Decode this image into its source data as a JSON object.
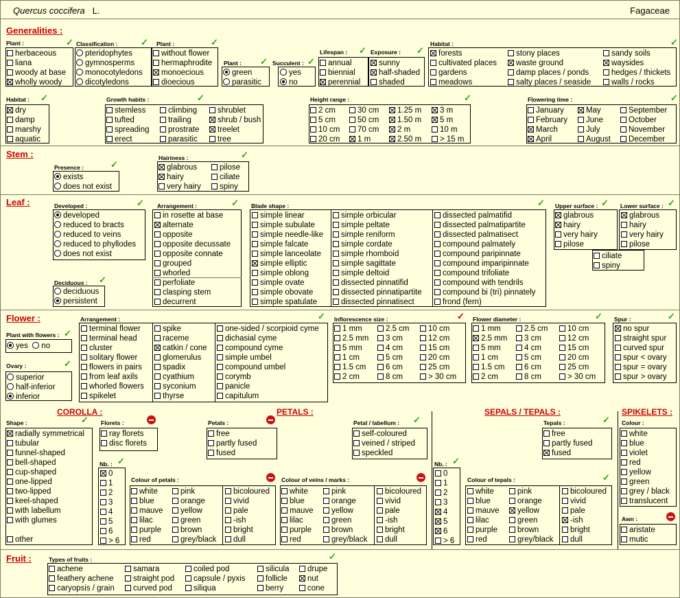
{
  "header": {
    "species": "Quercus coccifera",
    "author": "L.",
    "family": "Fagaceae"
  },
  "sections": {
    "generalities": "Generalities :",
    "stem": "Stem :",
    "leaf": "Leaf :",
    "flower": "Flower :",
    "fruit": "Fruit :"
  },
  "headings": {
    "plant": "Plant :",
    "classification": "Classification :",
    "plant2": "Plant :",
    "plant3": "Plant :",
    "succulent": "Succulent :",
    "lifespan": "Lifespan :",
    "exposure": "Exposure :",
    "habitat": "Habitat :",
    "habitat2": "Habitat :",
    "growth": "Growth habits :",
    "height": "Height range :",
    "flowering": "Flowering time :",
    "presence": "Presence :",
    "hairiness": "Hairiness :",
    "developed": "Developed :",
    "arrangement": "Arrangement :",
    "blade": "Blade shape :",
    "upper": "Upper surface :",
    "lower": "Lower surface :",
    "deciduous": "Deciduous :",
    "plantflowers": "Plant with flowers :",
    "farr": "Arrangement :",
    "infl": "Inflorescence size :",
    "fdiam": "Flower diameter :",
    "spur": "Spur :",
    "ovary": "Ovary :",
    "corolla": "COROLLA :",
    "petals": "PETALS :",
    "sepals": "SEPALS / TEPALS :",
    "spikelets": "SPIKELETS :",
    "shape": "Shape :",
    "florets": "Florets :",
    "petalsh": "Petals :",
    "labellum": "Petal / labellum :",
    "tepals": "Tepals :",
    "colour": "Colour :",
    "nb": "Nb. :",
    "nb2": "Nb. :",
    "colpetals": "Colour of petals :",
    "colveins": "Colour of veins / marks :",
    "coltepals": "Colour of tepals :",
    "awn": "Awn :",
    "fruittypes": "Types of fruits :"
  },
  "icons": {
    "ok": "✓",
    "bad": "✓",
    "no": "no-entry-icon"
  }
}
